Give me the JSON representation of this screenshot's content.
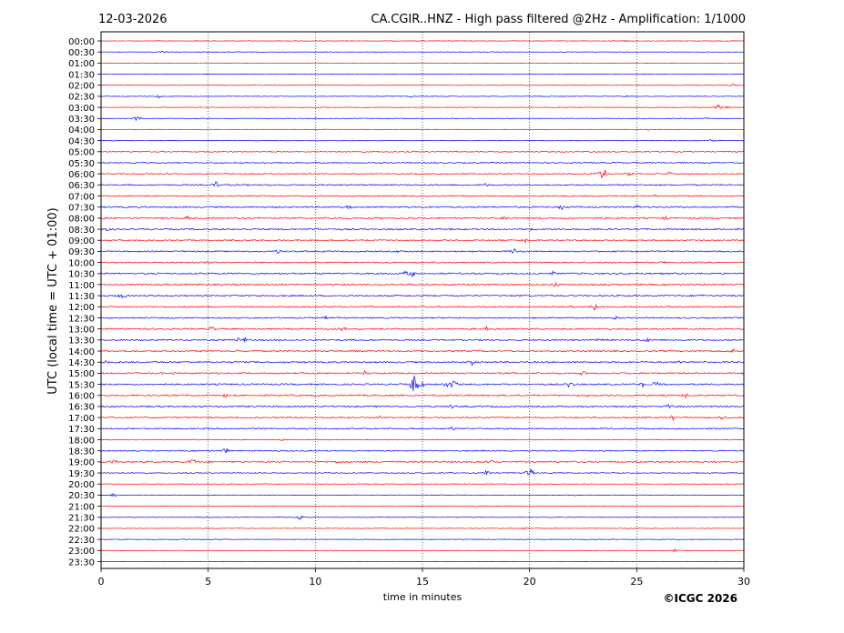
{
  "header": {
    "date": "12-03-2026",
    "title": "CA.CGIR..HNZ - High pass filtered @2Hz - Amplification: 1/1000"
  },
  "footer": {
    "copyright": "©ICGC 2026"
  },
  "chart_data": {
    "type": "line",
    "title": "CA.CGIR..HNZ - High pass filtered @2Hz - Amplification: 1/1000",
    "xlabel": "time in minutes",
    "ylabel": "UTC (local time = UTC + 01:00)",
    "xlim": [
      0,
      30
    ],
    "x_ticks": [
      0,
      5,
      10,
      15,
      20,
      25,
      30
    ],
    "vertical_gridlines": [
      5,
      10,
      15,
      20,
      25
    ],
    "colors": {
      "red": "#ff0000",
      "blue": "#0000ff"
    },
    "rows": [
      {
        "label": "00:00",
        "color": "red",
        "noise": 0.25,
        "events": [
          {
            "x": 24.5,
            "amp": 1
          }
        ]
      },
      {
        "label": "00:30",
        "color": "blue",
        "noise": 0.25,
        "events": [
          {
            "x": 2.9,
            "amp": 1
          }
        ]
      },
      {
        "label": "01:00",
        "color": "red",
        "noise": 0.2,
        "events": []
      },
      {
        "label": "01:30",
        "color": "blue",
        "noise": 0.2,
        "events": []
      },
      {
        "label": "02:00",
        "color": "red",
        "noise": 0.25,
        "events": [
          {
            "x": 29.5,
            "amp": 2
          }
        ]
      },
      {
        "label": "02:30",
        "color": "blue",
        "noise": 0.3,
        "events": [
          {
            "x": 2.7,
            "amp": 2
          },
          {
            "x": 14.5,
            "amp": 1
          },
          {
            "x": 24.5,
            "amp": 1
          }
        ]
      },
      {
        "label": "03:00",
        "color": "red",
        "noise": 0.3,
        "events": [
          {
            "x": 28.8,
            "amp": 3
          },
          {
            "x": 29.2,
            "amp": 2
          }
        ]
      },
      {
        "label": "03:30",
        "color": "blue",
        "noise": 0.3,
        "events": [
          {
            "x": 1.7,
            "amp": 3
          },
          {
            "x": 28.3,
            "amp": 1
          }
        ]
      },
      {
        "label": "04:00",
        "color": "red",
        "noise": 0.3,
        "events": [
          {
            "x": 25.5,
            "amp": 1
          }
        ]
      },
      {
        "label": "04:30",
        "color": "blue",
        "noise": 0.3,
        "events": [
          {
            "x": 28.5,
            "amp": 2
          }
        ]
      },
      {
        "label": "05:00",
        "color": "red",
        "noise": 0.6,
        "events": [
          {
            "x": 23.0,
            "amp": 2
          }
        ]
      },
      {
        "label": "05:30",
        "color": "blue",
        "noise": 0.6,
        "events": []
      },
      {
        "label": "06:00",
        "color": "red",
        "noise": 0.6,
        "events": [
          {
            "x": 23.4,
            "amp": 8
          },
          {
            "x": 24.7,
            "amp": 2
          },
          {
            "x": 26.5,
            "amp": 2
          }
        ]
      },
      {
        "label": "06:30",
        "color": "blue",
        "noise": 0.7,
        "events": [
          {
            "x": 5.4,
            "amp": 4
          },
          {
            "x": 18.0,
            "amp": 2
          }
        ]
      },
      {
        "label": "07:00",
        "color": "red",
        "noise": 0.6,
        "events": [
          {
            "x": 25.8,
            "amp": 1
          }
        ]
      },
      {
        "label": "07:30",
        "color": "blue",
        "noise": 0.8,
        "events": [
          {
            "x": 11.5,
            "amp": 2
          },
          {
            "x": 21.5,
            "amp": 3
          },
          {
            "x": 25.0,
            "amp": 2
          }
        ]
      },
      {
        "label": "08:00",
        "color": "red",
        "noise": 0.8,
        "events": [
          {
            "x": 4.0,
            "amp": 2
          },
          {
            "x": 18.8,
            "amp": 3
          },
          {
            "x": 26.3,
            "amp": 2
          }
        ]
      },
      {
        "label": "08:30",
        "color": "blue",
        "noise": 0.8,
        "events": [
          {
            "x": 0.2,
            "amp": 2
          },
          {
            "x": 10.0,
            "amp": 2
          },
          {
            "x": 20.0,
            "amp": 2
          }
        ]
      },
      {
        "label": "09:00",
        "color": "red",
        "noise": 0.7,
        "events": [
          {
            "x": 19.8,
            "amp": 2
          }
        ]
      },
      {
        "label": "09:30",
        "color": "blue",
        "noise": 0.7,
        "events": [
          {
            "x": 8.3,
            "amp": 2
          },
          {
            "x": 13.9,
            "amp": 2
          },
          {
            "x": 19.3,
            "amp": 3
          }
        ]
      },
      {
        "label": "10:00",
        "color": "red",
        "noise": 0.7,
        "events": [
          {
            "x": 5.0,
            "amp": 2
          },
          {
            "x": 26.2,
            "amp": 2
          }
        ]
      },
      {
        "label": "10:30",
        "color": "blue",
        "noise": 0.8,
        "events": [
          {
            "x": 14.2,
            "amp": 3
          },
          {
            "x": 14.5,
            "amp": 3
          },
          {
            "x": 21.1,
            "amp": 2
          }
        ]
      },
      {
        "label": "11:00",
        "color": "red",
        "noise": 0.8,
        "events": [
          {
            "x": 10.8,
            "amp": 2
          },
          {
            "x": 21.2,
            "amp": 3
          },
          {
            "x": 29.8,
            "amp": 2
          }
        ]
      },
      {
        "label": "11:30",
        "color": "blue",
        "noise": 0.8,
        "events": [
          {
            "x": 1.0,
            "amp": 3
          },
          {
            "x": 28.1,
            "amp": 2
          }
        ]
      },
      {
        "label": "12:00",
        "color": "red",
        "noise": 0.7,
        "events": [
          {
            "x": 23.0,
            "amp": 6
          },
          {
            "x": 22.0,
            "amp": 2
          }
        ]
      },
      {
        "label": "12:30",
        "color": "blue",
        "noise": 0.7,
        "events": [
          {
            "x": 10.4,
            "amp": 2
          },
          {
            "x": 24.0,
            "amp": 2
          }
        ]
      },
      {
        "label": "13:00",
        "color": "red",
        "noise": 0.8,
        "events": [
          {
            "x": 5.2,
            "amp": 3
          },
          {
            "x": 11.3,
            "amp": 3
          },
          {
            "x": 18.0,
            "amp": 2
          }
        ]
      },
      {
        "label": "13:30",
        "color": "blue",
        "noise": 0.8,
        "events": [
          {
            "x": 6.3,
            "amp": 3
          },
          {
            "x": 6.7,
            "amp": 3
          },
          {
            "x": 23.2,
            "amp": 2
          },
          {
            "x": 25.5,
            "amp": 2
          }
        ]
      },
      {
        "label": "14:00",
        "color": "red",
        "noise": 0.8,
        "events": [
          {
            "x": 6.3,
            "amp": 2
          },
          {
            "x": 29.5,
            "amp": 3
          }
        ]
      },
      {
        "label": "14:30",
        "color": "blue",
        "noise": 0.8,
        "events": [
          {
            "x": 0.2,
            "amp": 2
          },
          {
            "x": 17.3,
            "amp": 4
          },
          {
            "x": 27.0,
            "amp": 2
          }
        ]
      },
      {
        "label": "15:00",
        "color": "red",
        "noise": 0.8,
        "events": [
          {
            "x": 12.3,
            "amp": 2
          },
          {
            "x": 22.5,
            "amp": 2
          }
        ]
      },
      {
        "label": "15:30",
        "color": "blue",
        "noise": 0.8,
        "events": [
          {
            "x": 14.6,
            "amp": 10
          },
          {
            "x": 14.9,
            "amp": 7
          },
          {
            "x": 16.2,
            "amp": 6
          },
          {
            "x": 16.5,
            "amp": 5
          },
          {
            "x": 21.9,
            "amp": 4
          },
          {
            "x": 25.3,
            "amp": 3
          },
          {
            "x": 25.9,
            "amp": 3
          }
        ]
      },
      {
        "label": "16:00",
        "color": "red",
        "noise": 0.8,
        "events": [
          {
            "x": 5.8,
            "amp": 3
          },
          {
            "x": 22.7,
            "amp": 2
          },
          {
            "x": 27.3,
            "amp": 2
          }
        ]
      },
      {
        "label": "16:30",
        "color": "blue",
        "noise": 0.8,
        "events": [
          {
            "x": 6.2,
            "amp": 2
          },
          {
            "x": 16.4,
            "amp": 2
          },
          {
            "x": 26.5,
            "amp": 2
          }
        ]
      },
      {
        "label": "17:00",
        "color": "red",
        "noise": 0.7,
        "events": [
          {
            "x": 12.9,
            "amp": 2
          },
          {
            "x": 26.7,
            "amp": 3
          },
          {
            "x": 28.9,
            "amp": 3
          }
        ]
      },
      {
        "label": "17:30",
        "color": "blue",
        "noise": 0.7,
        "events": [
          {
            "x": 14.5,
            "amp": 2
          },
          {
            "x": 16.4,
            "amp": 2
          }
        ]
      },
      {
        "label": "18:00",
        "color": "red",
        "noise": 0.4,
        "events": [
          {
            "x": 8.5,
            "amp": 1
          }
        ]
      },
      {
        "label": "18:30",
        "color": "blue",
        "noise": 0.6,
        "events": [
          {
            "x": 5.8,
            "amp": 3
          }
        ]
      },
      {
        "label": "19:00",
        "color": "red",
        "noise": 0.8,
        "events": [
          {
            "x": 0.6,
            "amp": 2
          },
          {
            "x": 4.3,
            "amp": 3
          },
          {
            "x": 11.1,
            "amp": 2
          },
          {
            "x": 18.2,
            "amp": 3
          }
        ]
      },
      {
        "label": "19:30",
        "color": "blue",
        "noise": 0.5,
        "events": [
          {
            "x": 18.0,
            "amp": 3
          },
          {
            "x": 20.0,
            "amp": 7
          }
        ]
      },
      {
        "label": "20:00",
        "color": "red",
        "noise": 0.3,
        "events": []
      },
      {
        "label": "20:30",
        "color": "blue",
        "noise": 0.3,
        "events": [
          {
            "x": 0.6,
            "amp": 2
          },
          {
            "x": 22.1,
            "amp": 1
          }
        ]
      },
      {
        "label": "21:00",
        "color": "red",
        "noise": 0.3,
        "events": [
          {
            "x": 17.5,
            "amp": 1
          }
        ]
      },
      {
        "label": "21:30",
        "color": "blue",
        "noise": 0.3,
        "events": [
          {
            "x": 9.3,
            "amp": 3
          },
          {
            "x": 8.3,
            "amp": 1
          }
        ]
      },
      {
        "label": "22:00",
        "color": "red",
        "noise": 0.3,
        "events": [
          {
            "x": 19.7,
            "amp": 2
          }
        ]
      },
      {
        "label": "22:30",
        "color": "blue",
        "noise": 0.3,
        "events": [
          {
            "x": 1.2,
            "amp": 1
          }
        ]
      },
      {
        "label": "23:00",
        "color": "red",
        "noise": 0.25,
        "events": [
          {
            "x": 26.8,
            "amp": 2
          }
        ]
      },
      {
        "label": "23:30",
        "color": "blue",
        "noise": 0.2,
        "events": []
      }
    ]
  }
}
